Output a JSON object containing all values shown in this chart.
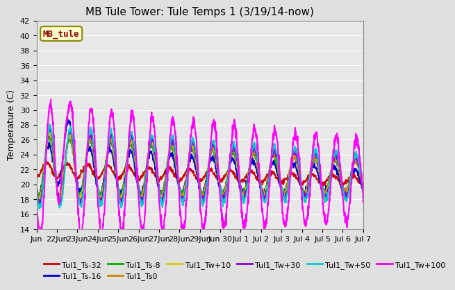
{
  "title": "MB Tule Tower: Tule Temps 1 (3/19/14-now)",
  "ylabel": "Temperature (C)",
  "ylim": [
    14,
    42
  ],
  "yticks": [
    14,
    16,
    18,
    20,
    22,
    24,
    26,
    28,
    30,
    32,
    34,
    36,
    38,
    40,
    42
  ],
  "xtick_positions": [
    0,
    1,
    2,
    3,
    4,
    5,
    6,
    7,
    8,
    9,
    10,
    11,
    12,
    13,
    14,
    15,
    16
  ],
  "xtick_labels": [
    "Jun",
    "22Jun",
    "23Jun",
    "24Jun",
    "25Jun",
    "26Jun",
    "27Jun",
    "28Jun",
    "29Jun",
    "Jun 30",
    "Jul 1",
    "Jul 2",
    "Jul 3",
    "Jul 4",
    "Jul 5",
    "Jul 6",
    "Jul 7"
  ],
  "bg_color": "#e0e0e0",
  "plot_bg": "#e8e8e8",
  "grid_color": "#ffffff",
  "series": [
    {
      "label": "Tul1_Ts-32",
      "color": "#cc0000",
      "lw": 1.2
    },
    {
      "label": "Tul1_Ts-16",
      "color": "#0000cc",
      "lw": 1.2
    },
    {
      "label": "Tul1_Ts-8",
      "color": "#00aa00",
      "lw": 1.2
    },
    {
      "label": "Tul1_Ts0",
      "color": "#cc8800",
      "lw": 1.2
    },
    {
      "label": "Tul1_Tw+10",
      "color": "#cccc00",
      "lw": 1.2
    },
    {
      "label": "Tul1_Tw+30",
      "color": "#8800cc",
      "lw": 1.2
    },
    {
      "label": "Tul1_Tw+50",
      "color": "#00cccc",
      "lw": 1.2
    },
    {
      "label": "Tul1_Tw+100",
      "color": "#ff00ff",
      "lw": 1.5
    }
  ],
  "label_box": {
    "text": "MB_tule",
    "bg": "#ffffcc",
    "edge": "#888800",
    "text_color": "#880000",
    "fontsize": 9
  },
  "title_fontsize": 11,
  "tick_fontsize": 8,
  "legend_fontsize": 8
}
